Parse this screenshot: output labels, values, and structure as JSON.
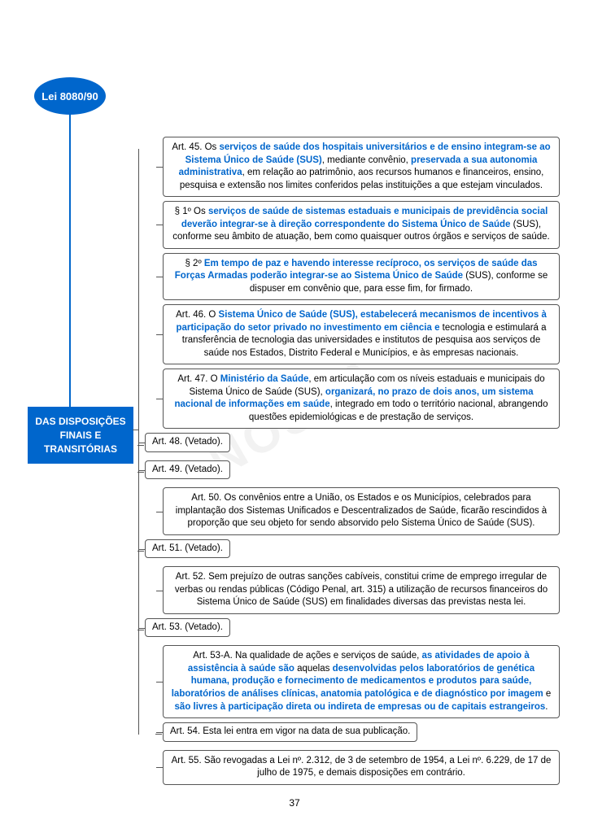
{
  "colors": {
    "brand_blue": "#0066cc",
    "text_black": "#000000",
    "border_gray": "#555555",
    "background": "#ffffff",
    "watermark": "rgba(0,0,0,0.05)"
  },
  "typography": {
    "base_font": "Arial",
    "article_fontsize": 11.5,
    "badge_fontsize": 12,
    "root_badge_fontsize": 13
  },
  "root_label": "Lei 8080/90",
  "section_label": "DAS DISPOSIÇÕES FINAIS E TRANSITÓRIAS",
  "page_number": "37",
  "watermark_text": "NOSSA",
  "articles": [
    {
      "id": "art45",
      "indent": 1,
      "segments": [
        {
          "t": "Art. 45. Os ",
          "b": false
        },
        {
          "t": "serviços de saúde dos hospitais universitários e de ensino integram-se ao Sistema Único de Saúde (SUS)",
          "b": true
        },
        {
          "t": ", mediante convênio, ",
          "b": false
        },
        {
          "t": "preservada a sua autonomia administrativa",
          "b": true
        },
        {
          "t": ", em relação ao patrimônio, aos recursos humanos e financeiros, ensino, pesquisa e extensão nos limites conferidos pelas instituições a que estejam vinculados.",
          "b": false
        }
      ]
    },
    {
      "id": "art45p1",
      "indent": 2,
      "segments": [
        {
          "t": "§ 1º Os ",
          "b": false
        },
        {
          "t": "serviços de saúde de sistemas estaduais e municipais de previdência social deverão integrar-se à direção correspondente do Sistema Único de Saúde",
          "b": true
        },
        {
          "t": " (SUS), conforme seu âmbito de atuação, bem como quaisquer outros órgãos e serviços de saúde.",
          "b": false
        }
      ]
    },
    {
      "id": "art45p2",
      "indent": 2,
      "segments": [
        {
          "t": "§ 2º ",
          "b": false
        },
        {
          "t": "Em tempo de paz e havendo interesse recíproco, os serviços de saúde das Forças Armadas poderão integrar-se ao Sistema Único de Saúde",
          "b": true
        },
        {
          "t": " (SUS), conforme se dispuser em convênio que, para esse fim, for firmado.",
          "b": false
        }
      ]
    },
    {
      "id": "art46",
      "indent": 1,
      "segments": [
        {
          "t": "Art. 46. O ",
          "b": false
        },
        {
          "t": "Sistema Único de Saúde (SUS), estabelecerá mecanismos de incentivos à participação do setor privado no investimento em ciência e",
          "b": true
        },
        {
          "t": " tecnologia e estimulará a transferência de tecnologia das universidades e institutos de pesquisa aos serviços de saúde nos Estados, Distrito Federal e Municípios, e às empresas nacionais.",
          "b": false
        }
      ]
    },
    {
      "id": "art47",
      "indent": 1,
      "segments": [
        {
          "t": "Art. 47. O ",
          "b": false
        },
        {
          "t": "Ministério da Saúde",
          "b": true
        },
        {
          "t": ", em articulação com os níveis estaduais e municipais do Sistema Único de Saúde (SUS), ",
          "b": false
        },
        {
          "t": "organizará, no prazo de dois anos, um sistema nacional de informações em saúde",
          "b": true
        },
        {
          "t": ", integrado em todo o território nacional, abrangendo questões epidemiológicas e de prestação de serviços.",
          "b": false
        }
      ]
    },
    {
      "id": "art48",
      "indent": 0,
      "short": true,
      "segments": [
        {
          "t": "Art. 48. (Vetado).",
          "b": false
        }
      ]
    },
    {
      "id": "art49",
      "indent": 0,
      "short": true,
      "segments": [
        {
          "t": "Art. 49. (Vetado).",
          "b": false
        }
      ]
    },
    {
      "id": "art50",
      "indent": 1,
      "segments": [
        {
          "t": "Art. 50. Os convênios entre a União, os Estados e os Municípios, celebrados para implantação dos Sistemas Unificados e Descentralizados de Saúde, ficarão rescindidos à proporção que seu objeto for sendo absorvido pelo Sistema Único de Saúde (SUS).",
          "b": false
        }
      ]
    },
    {
      "id": "art51",
      "indent": 0,
      "short": true,
      "segments": [
        {
          "t": "Art. 51. (Vetado).",
          "b": false
        }
      ]
    },
    {
      "id": "art52",
      "indent": 1,
      "segments": [
        {
          "t": "Art. 52. Sem prejuízo de outras sanções cabíveis, constitui crime de emprego irregular de verbas ou rendas públicas (Código Penal, art. 315) a utilização de recursos financeiros do Sistema Único de Saúde (SUS) em finalidades diversas das previstas nesta lei.",
          "b": false
        }
      ]
    },
    {
      "id": "art53",
      "indent": 0,
      "short": true,
      "segments": [
        {
          "t": "Art. 53. (Vetado).",
          "b": false
        }
      ]
    },
    {
      "id": "art53a",
      "indent": 1,
      "segments": [
        {
          "t": "Art. 53-A.  Na qualidade de ações e serviços de saúde, ",
          "b": false
        },
        {
          "t": "as atividades de apoio à assistência à saúde são",
          "b": true
        },
        {
          "t": " aquelas ",
          "b": false
        },
        {
          "t": "desenvolvidas pelos laboratórios de genética humana, produção e fornecimento de medicamentos e produtos para saúde, laboratórios de análises clínicas, anatomia patológica e de diagnóstico por imagem",
          "b": true
        },
        {
          "t": " e ",
          "b": false
        },
        {
          "t": "são livres à participação direta ou indireta de empresas ou de capitais estrangeiros",
          "b": true
        },
        {
          "t": ".",
          "b": false
        }
      ]
    },
    {
      "id": "art54",
      "indent": 1,
      "short": true,
      "segments": [
        {
          "t": "Art. 54. Esta lei entra em vigor na data de sua publicação.",
          "b": false
        }
      ]
    },
    {
      "id": "art55",
      "indent": 1,
      "segments": [
        {
          "t": "Art. 55. São revogadas a Lei nº. 2.312, de 3 de setembro de 1954, a Lei nº. 6.229, de 17 de julho de 1975, e demais disposições em contrário.",
          "b": false
        }
      ]
    }
  ]
}
